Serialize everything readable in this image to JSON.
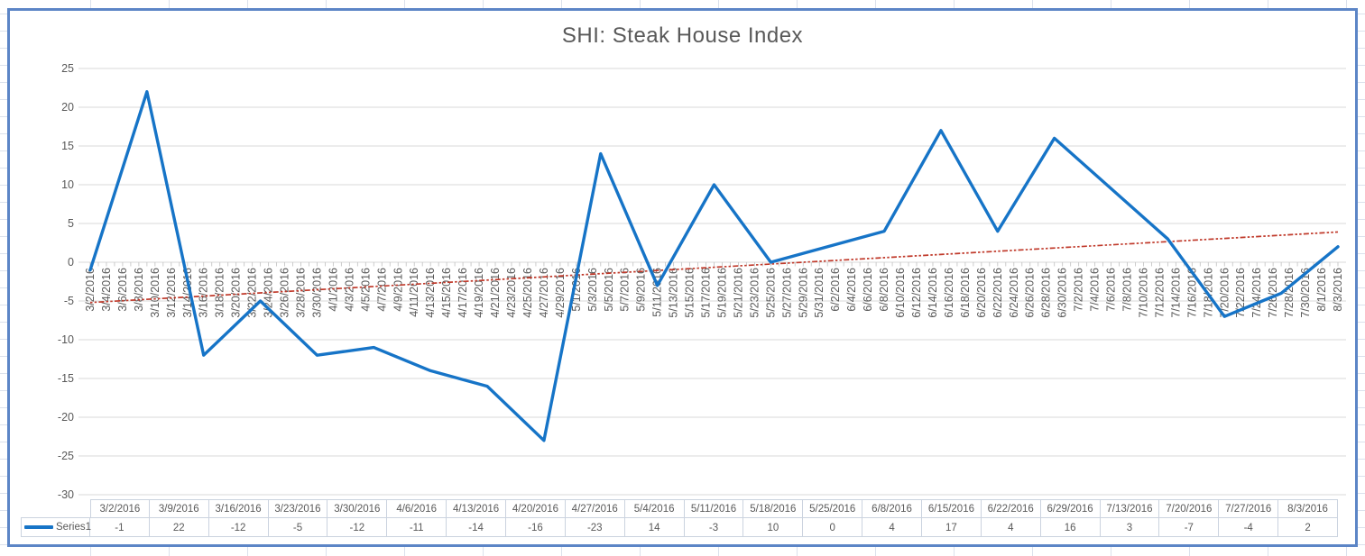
{
  "chart_data": {
    "type": "line",
    "title": "SHI:  Steak House Index",
    "xlabel": "",
    "ylabel": "",
    "ylim": [
      -30,
      25
    ],
    "y_ticks": [
      25,
      20,
      15,
      10,
      5,
      0,
      -5,
      -10,
      -15,
      -20,
      -25,
      -30
    ],
    "grid": true,
    "x_tick_rotation_degrees": 90,
    "x_axis_labels": [
      "3/2/2016",
      "3/4/2016",
      "3/6/2016",
      "3/8/2016",
      "3/10/2016",
      "3/12/2016",
      "3/14/2016",
      "3/16/2016",
      "3/18/2016",
      "3/20/2016",
      "3/22/2016",
      "3/24/2016",
      "3/26/2016",
      "3/28/2016",
      "3/30/2016",
      "4/1/2016",
      "4/3/2016",
      "4/5/2016",
      "4/7/2016",
      "4/9/2016",
      "4/11/2016",
      "4/13/2016",
      "4/15/2016",
      "4/17/2016",
      "4/19/2016",
      "4/21/2016",
      "4/23/2016",
      "4/25/2016",
      "4/27/2016",
      "4/29/2016",
      "5/1/2016",
      "5/3/2016",
      "5/5/2016",
      "5/7/2016",
      "5/9/2016",
      "5/11/2016",
      "5/13/2016",
      "5/15/2016",
      "5/17/2016",
      "5/19/2016",
      "5/21/2016",
      "5/23/2016",
      "5/25/2016",
      "5/27/2016",
      "5/29/2016",
      "5/31/2016",
      "6/2/2016",
      "6/4/2016",
      "6/6/2016",
      "6/8/2016",
      "6/10/2016",
      "6/12/2016",
      "6/14/2016",
      "6/16/2016",
      "6/18/2016",
      "6/20/2016",
      "6/22/2016",
      "6/24/2016",
      "6/26/2016",
      "6/28/2016",
      "6/30/2016",
      "7/2/2016",
      "7/4/2016",
      "7/6/2016",
      "7/8/2016",
      "7/10/2016",
      "7/12/2016",
      "7/14/2016",
      "7/16/2016",
      "7/18/2016",
      "7/20/2016",
      "7/22/2016",
      "7/24/2016",
      "7/26/2016",
      "7/28/2016",
      "7/30/2016",
      "8/1/2016",
      "8/3/2016"
    ],
    "series": [
      {
        "name": "Series1",
        "color": "#1674c7",
        "x": [
          "3/2/2016",
          "3/9/2016",
          "3/16/2016",
          "3/23/2016",
          "3/30/2016",
          "4/6/2016",
          "4/13/2016",
          "4/20/2016",
          "4/27/2016",
          "5/4/2016",
          "5/11/2016",
          "5/18/2016",
          "5/25/2016",
          "6/8/2016",
          "6/15/2016",
          "6/22/2016",
          "6/29/2016",
          "7/13/2016",
          "7/20/2016",
          "7/27/2016",
          "8/3/2016"
        ],
        "values": [
          -1,
          22,
          -12,
          -5,
          -12,
          -11,
          -14,
          -16,
          -23,
          14,
          -3,
          10,
          0,
          4,
          17,
          4,
          16,
          3,
          -7,
          -4,
          2
        ]
      }
    ],
    "trendline": {
      "type": "linear",
      "style": "dash-dot",
      "color": "#c03a2b",
      "start_value": -5.2,
      "end_value": 3.9
    },
    "legend_position": "bottom-data-table"
  },
  "data_table": {
    "legend_label": "Series1",
    "dates": [
      "3/2/2016",
      "3/9/2016",
      "3/16/2016",
      "3/23/2016",
      "3/30/2016",
      "4/6/2016",
      "4/13/2016",
      "4/20/2016",
      "4/27/2016",
      "5/4/2016",
      "5/11/2016",
      "5/18/2016",
      "5/25/2016",
      "6/8/2016",
      "6/15/2016",
      "6/22/2016",
      "6/29/2016",
      "7/13/2016",
      "7/20/2016",
      "7/27/2016",
      "8/3/2016"
    ],
    "values": [
      "-1",
      "22",
      "-12",
      "-5",
      "-12",
      "-11",
      "-14",
      "-16",
      "-23",
      "14",
      "-3",
      "10",
      "0",
      "4",
      "17",
      "4",
      "16",
      "3",
      "-7",
      "-4",
      "2"
    ]
  },
  "colors": {
    "series_blue": "#1674c7",
    "trendline_red": "#c03a2b",
    "gridline": "#d9d9d9",
    "tick_mark": "#c6c6c6",
    "axis_text": "#595959",
    "chart_border": "#5c85c6",
    "table_border": "#cbd3df",
    "sheet_gridline": "#dbe1ec"
  }
}
